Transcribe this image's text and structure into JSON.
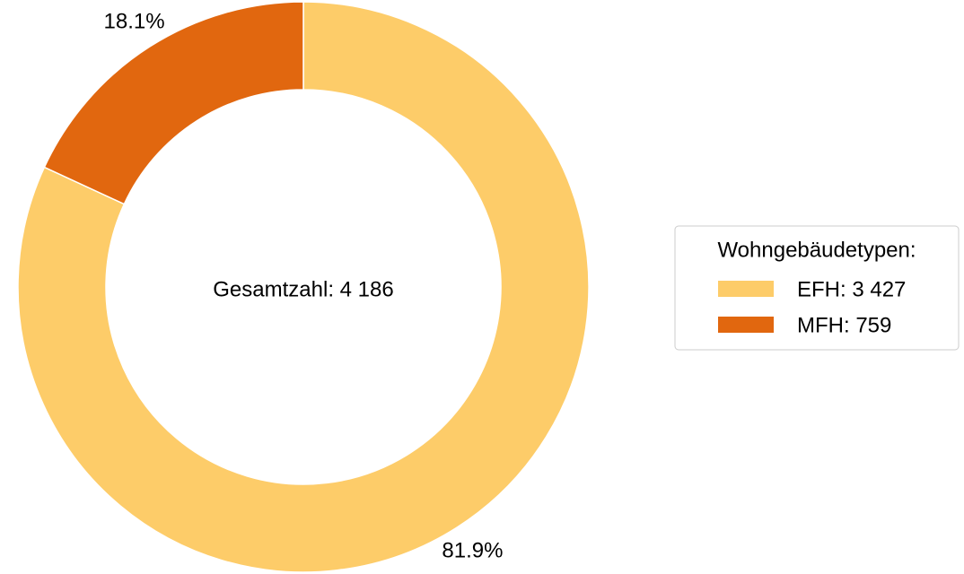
{
  "chart_data": {
    "type": "pie",
    "categories": [
      "EFH: 3 427",
      "MFH: 759"
    ],
    "values": [
      81.9,
      18.1
    ],
    "value_labels": [
      "81.9%",
      "18.1%"
    ],
    "colors": [
      "#fdcc69",
      "#e1670f"
    ],
    "center_label": "Gesamtzahl: 4 186",
    "legend_title": "Wohngebäudetypen:",
    "legend": "right"
  }
}
